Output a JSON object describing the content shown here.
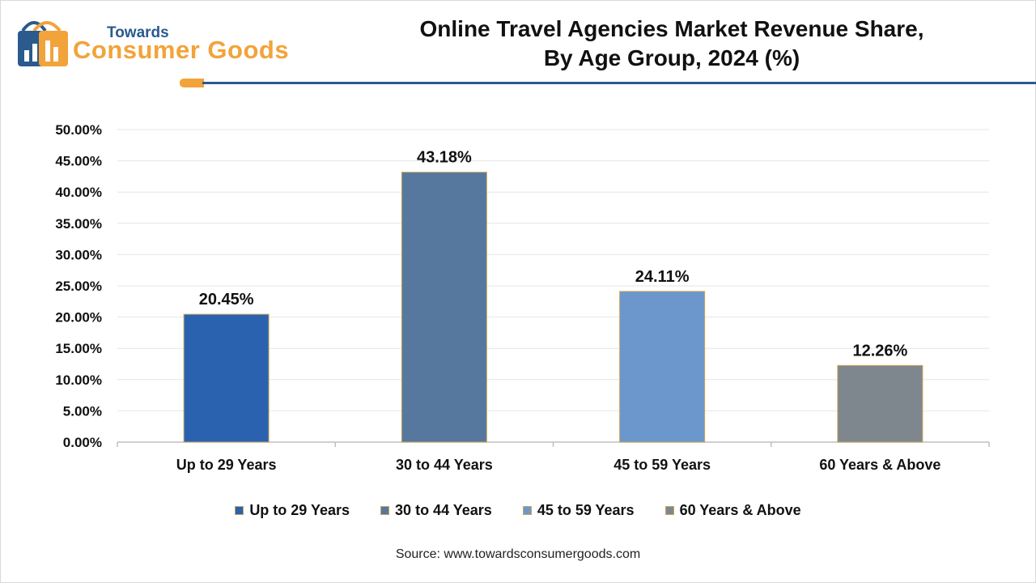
{
  "brand": {
    "small": "Towards",
    "big": "Consumer Goods",
    "colors": {
      "primary": "#2b5a8c",
      "accent": "#f2a33a"
    }
  },
  "header": {
    "title_line1": "Online Travel Agencies Market Revenue Share,",
    "title_line2": "By Age Group, 2024 (%)"
  },
  "chart_data": {
    "type": "bar",
    "title": "Online Travel Agencies Market Revenue Share, By Age Group, 2024 (%)",
    "xlabel": "",
    "ylabel": "",
    "categories": [
      "Up to 29 Years",
      "30 to 44 Years",
      "45 to 59 Years",
      "60 Years & Above"
    ],
    "values": [
      20.45,
      43.18,
      24.11,
      12.26
    ],
    "value_labels": [
      "20.45%",
      "43.18%",
      "24.11%",
      "12.26%"
    ],
    "colors": [
      "#2a62b0",
      "#56789f",
      "#6b97cc",
      "#7f878e"
    ],
    "ylim": [
      0,
      50
    ],
    "yticks": [
      0,
      5,
      10,
      15,
      20,
      25,
      30,
      35,
      40,
      45,
      50
    ],
    "ytick_labels": [
      "0.00%",
      "5.00%",
      "10.00%",
      "15.00%",
      "20.00%",
      "25.00%",
      "30.00%",
      "35.00%",
      "40.00%",
      "45.00%",
      "50.00%"
    ],
    "grid": true,
    "legend_position": "bottom"
  },
  "source": "Source: www.towardsconsumergoods.com"
}
